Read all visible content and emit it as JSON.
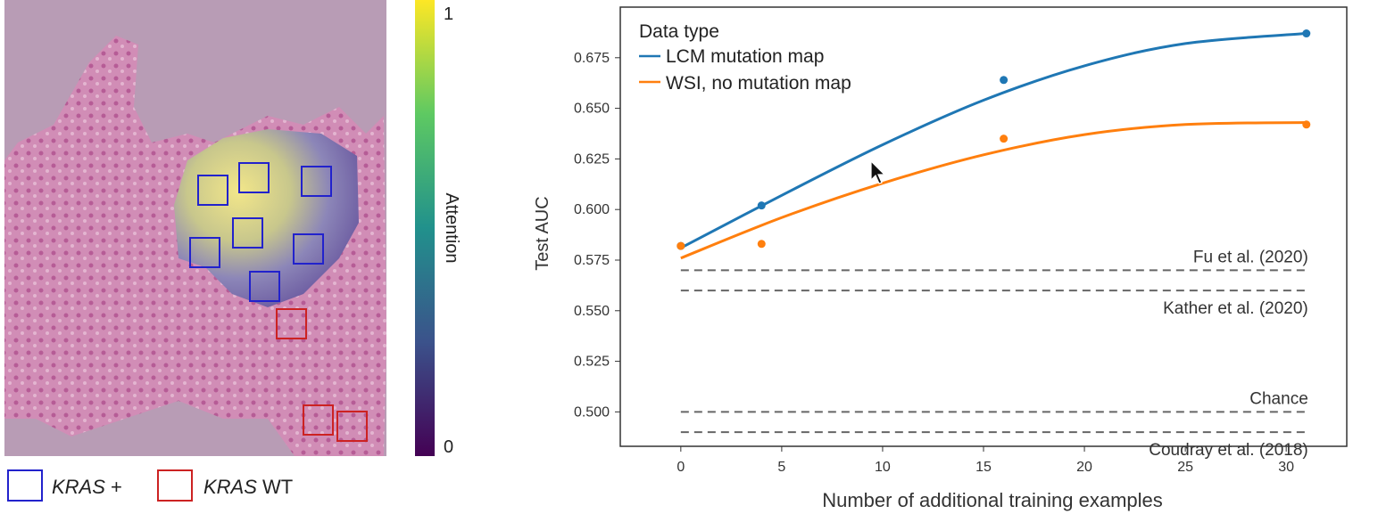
{
  "colors": {
    "blue_box": "#2222cc",
    "red_box": "#cc2222",
    "lcm": "#1f77b4",
    "wsi": "#ff7f0e",
    "dash": "#666666",
    "frame": "#333333"
  },
  "tissue_panel": {
    "colorbar": {
      "label": "Attention",
      "max_label": "1",
      "min_label": "0"
    },
    "legend": [
      {
        "italic": "KRAS",
        "suffix": " +",
        "color": "#2222cc"
      },
      {
        "italic": "KRAS",
        "suffix": " WT",
        "color": "#cc2222"
      }
    ]
  },
  "chart_data": {
    "type": "line",
    "xlabel": "Number of additional training examples",
    "ylabel": "Test AUC",
    "xlim": [
      -3,
      33
    ],
    "ylim": [
      0.483,
      0.7
    ],
    "x_ticks": [
      0,
      5,
      10,
      15,
      20,
      25,
      30
    ],
    "y_ticks": [
      0.5,
      0.525,
      0.55,
      0.575,
      0.6,
      0.625,
      0.65,
      0.675
    ],
    "y_tick_labels": [
      "0.500",
      "0.525",
      "0.550",
      "0.575",
      "0.600",
      "0.625",
      "0.650",
      "0.675"
    ],
    "legend": {
      "title": "Data type",
      "placement": "top-left"
    },
    "series": [
      {
        "name": "LCM mutation map",
        "color": "#1f77b4",
        "points": [
          [
            0,
            0.582
          ],
          [
            4,
            0.602
          ],
          [
            16,
            0.664
          ],
          [
            31,
            0.687
          ]
        ],
        "fit": [
          [
            0,
            0.581
          ],
          [
            5,
            0.607
          ],
          [
            10,
            0.632
          ],
          [
            15,
            0.654
          ],
          [
            20,
            0.671
          ],
          [
            25,
            0.682
          ],
          [
            31,
            0.687
          ]
        ]
      },
      {
        "name": "WSI, no mutation map",
        "color": "#ff7f0e",
        "points": [
          [
            0,
            0.582
          ],
          [
            4,
            0.583
          ],
          [
            16,
            0.635
          ],
          [
            31,
            0.642
          ]
        ],
        "fit": [
          [
            0,
            0.576
          ],
          [
            5,
            0.596
          ],
          [
            10,
            0.613
          ],
          [
            15,
            0.627
          ],
          [
            20,
            0.637
          ],
          [
            25,
            0.642
          ],
          [
            31,
            0.643
          ]
        ]
      }
    ],
    "reference_lines": [
      {
        "label": "Fu et al. (2020)",
        "y": 0.57,
        "label_position": "above"
      },
      {
        "label": "Kather et al. (2020)",
        "y": 0.56,
        "label_position": "below"
      },
      {
        "label": "Chance",
        "y": 0.5,
        "label_position": "above"
      },
      {
        "label": "Coudray et al. (2018)",
        "y": 0.49,
        "label_position": "below"
      }
    ]
  }
}
